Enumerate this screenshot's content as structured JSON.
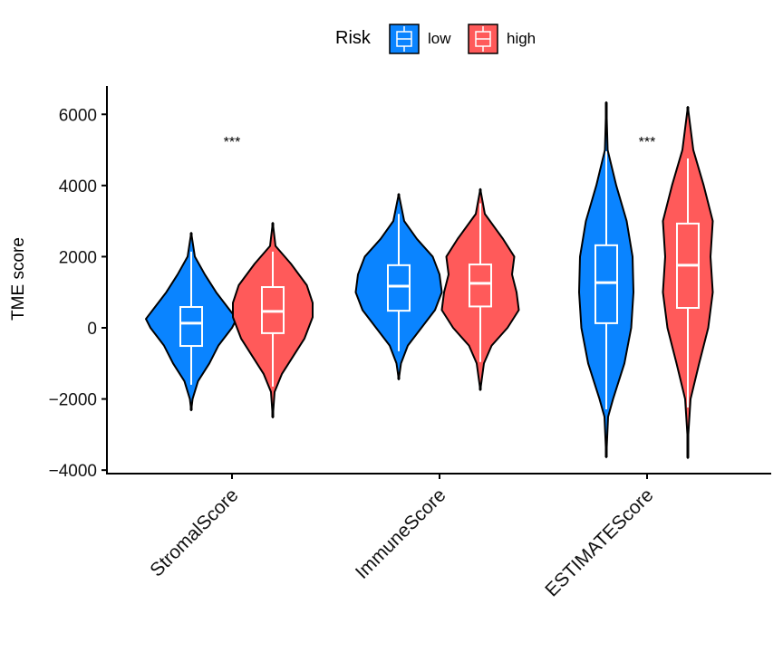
{
  "chart_data": {
    "type": "violin",
    "title": "",
    "xlabel": "",
    "ylabel": "TME score",
    "ylim": [
      -4300,
      6800
    ],
    "yticks": [
      -4000,
      -2000,
      0,
      2000,
      4000,
      6000
    ],
    "ytick_labels": [
      "−4000",
      "−2000",
      "0",
      "2000",
      "4000",
      "6000"
    ],
    "categories": [
      "StromalScore",
      "ImmuneScore",
      "ESTIMATEScore"
    ],
    "significance": [
      "***",
      "",
      "***"
    ],
    "legend": {
      "title": "Risk",
      "position": "top",
      "entries": [
        "low",
        "high"
      ]
    },
    "colors": {
      "low": "#0A84FF",
      "high": "#FF5A5A"
    },
    "series": [
      {
        "name": "low",
        "groups": [
          {
            "min": -2320,
            "whisker_low": -1600,
            "q1": -510,
            "median": 130,
            "q3": 585,
            "whisker_high": 2140,
            "max": 2670,
            "density": [
              [
                2670,
                0
              ],
              [
                2000,
                0.08
              ],
              [
                1500,
                0.3
              ],
              [
                1000,
                0.55
              ],
              [
                500,
                0.85
              ],
              [
                250,
                1
              ],
              [
                0,
                0.9
              ],
              [
                -500,
                0.6
              ],
              [
                -1000,
                0.4
              ],
              [
                -1500,
                0.15
              ],
              [
                -2000,
                0.03
              ],
              [
                -2320,
                0
              ]
            ]
          },
          {
            "min": -1450,
            "whisker_low": -660,
            "q1": 480,
            "median": 1170,
            "q3": 1760,
            "whisker_high": 3200,
            "max": 3760,
            "density": [
              [
                3760,
                0
              ],
              [
                3000,
                0.12
              ],
              [
                2500,
                0.4
              ],
              [
                2000,
                0.75
              ],
              [
                1500,
                0.9
              ],
              [
                1000,
                0.95
              ],
              [
                500,
                0.8
              ],
              [
                0,
                0.5
              ],
              [
                -500,
                0.2
              ],
              [
                -1000,
                0.05
              ],
              [
                -1450,
                0
              ]
            ]
          },
          {
            "min": -3640,
            "whisker_low": -2290,
            "q1": 130,
            "median": 1270,
            "q3": 2320,
            "whisker_high": 4960,
            "max": 6340,
            "density": [
              [
                6340,
                0
              ],
              [
                5000,
                0.03
              ],
              [
                4000,
                0.22
              ],
              [
                3000,
                0.45
              ],
              [
                2000,
                0.58
              ],
              [
                1000,
                0.6
              ],
              [
                0,
                0.55
              ],
              [
                -1000,
                0.4
              ],
              [
                -2000,
                0.15
              ],
              [
                -2500,
                0.04
              ],
              [
                -3640,
                0
              ]
            ]
          }
        ]
      },
      {
        "name": "high",
        "groups": [
          {
            "min": -2520,
            "whisker_low": -1650,
            "q1": -150,
            "median": 460,
            "q3": 1145,
            "whisker_high": 2140,
            "max": 2950,
            "density": [
              [
                2950,
                0
              ],
              [
                2300,
                0.06
              ],
              [
                1800,
                0.4
              ],
              [
                1200,
                0.75
              ],
              [
                700,
                0.88
              ],
              [
                300,
                0.88
              ],
              [
                -300,
                0.7
              ],
              [
                -800,
                0.45
              ],
              [
                -1300,
                0.2
              ],
              [
                -1800,
                0.04
              ],
              [
                -2520,
                0
              ]
            ]
          },
          {
            "min": -1750,
            "whisker_low": -960,
            "q1": 600,
            "median": 1250,
            "q3": 1780,
            "whisker_high": 3500,
            "max": 3900,
            "density": [
              [
                3900,
                0
              ],
              [
                3200,
                0.1
              ],
              [
                2500,
                0.5
              ],
              [
                2000,
                0.75
              ],
              [
                1500,
                0.7
              ],
              [
                1000,
                0.8
              ],
              [
                500,
                0.85
              ],
              [
                0,
                0.6
              ],
              [
                -500,
                0.25
              ],
              [
                -1000,
                0.08
              ],
              [
                -1750,
                0
              ]
            ]
          },
          {
            "min": -3660,
            "whisker_low": -2240,
            "q1": 560,
            "median": 1760,
            "q3": 2930,
            "whisker_high": 4760,
            "max": 6210,
            "density": [
              [
                6210,
                0
              ],
              [
                5000,
                0.12
              ],
              [
                4000,
                0.35
              ],
              [
                3000,
                0.55
              ],
              [
                2000,
                0.5
              ],
              [
                1000,
                0.55
              ],
              [
                0,
                0.45
              ],
              [
                -1000,
                0.25
              ],
              [
                -2000,
                0.06
              ],
              [
                -3000,
                0.01
              ],
              [
                -3660,
                0
              ]
            ]
          }
        ]
      }
    ]
  }
}
